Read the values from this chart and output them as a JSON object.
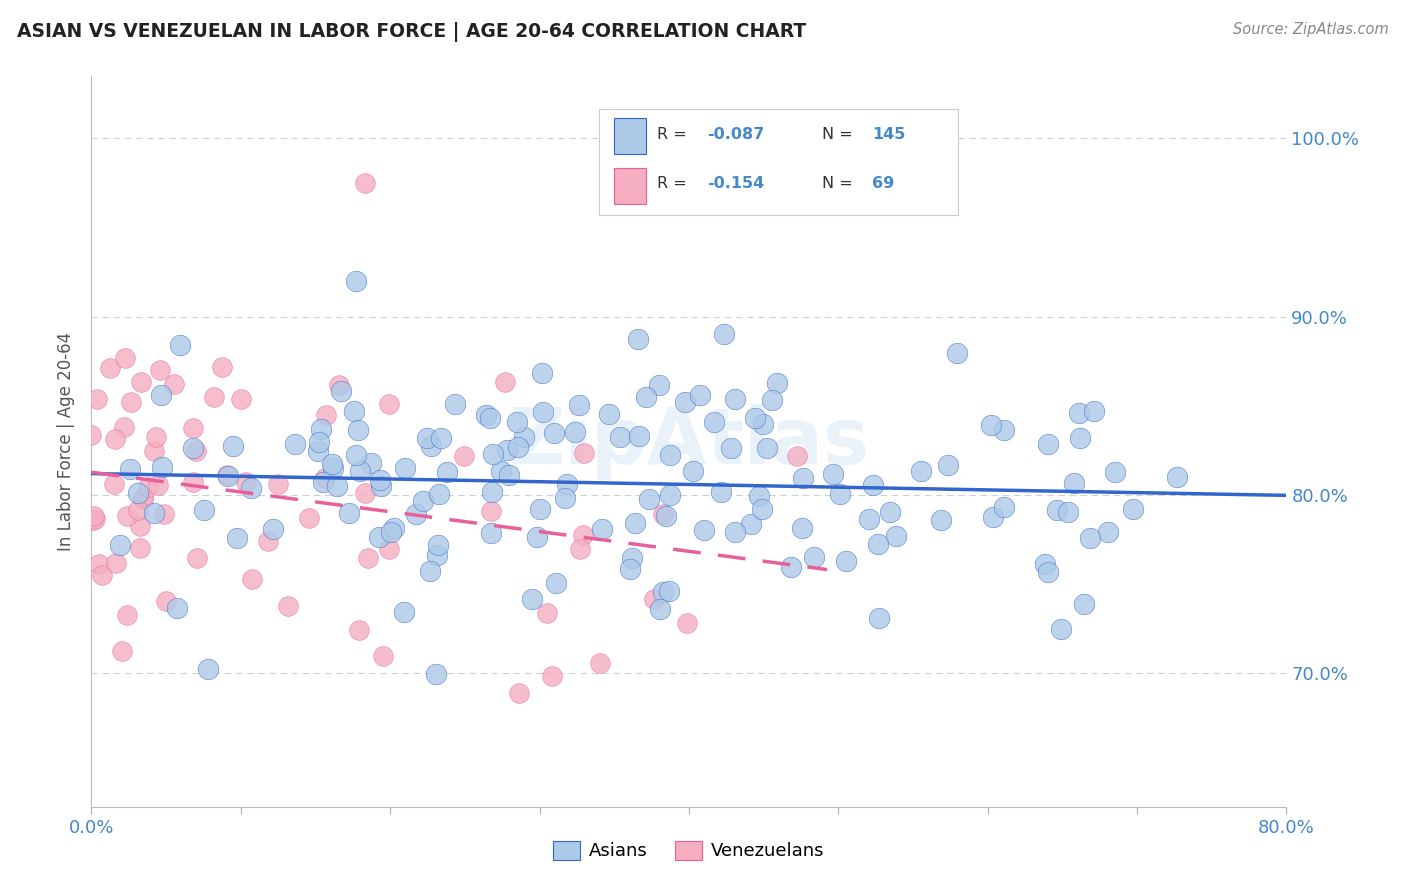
{
  "title": "ASIAN VS VENEZUELAN IN LABOR FORCE | AGE 20-64 CORRELATION CHART",
  "source": "Source: ZipAtlas.com",
  "ylabel": "In Labor Force | Age 20-64",
  "xlim": [
    0.0,
    0.8
  ],
  "ylim": [
    0.625,
    1.035
  ],
  "yticks": [
    0.7,
    0.8,
    0.9,
    1.0
  ],
  "ytick_labels": [
    "70.0%",
    "80.0%",
    "90.0%",
    "100.0%"
  ],
  "xtick_labels_show": [
    "0.0%",
    "80.0%"
  ],
  "asian_color": "#adc9e8",
  "venezuelan_color": "#f4aec0",
  "asian_line_color": "#3366cc",
  "venezuelan_line_color": "#e8609a",
  "R_asian": -0.087,
  "N_asian": 145,
  "R_venezuelan": -0.154,
  "N_venezuelan": 69,
  "watermark": "ZipAtlas",
  "legend_asian_label": "Asians",
  "legend_venezuelan_label": "Venezuelans",
  "background_color": "#ffffff",
  "grid_color": "#d0d0d0",
  "axis_label_color": "#4488cc",
  "title_color": "#222222"
}
